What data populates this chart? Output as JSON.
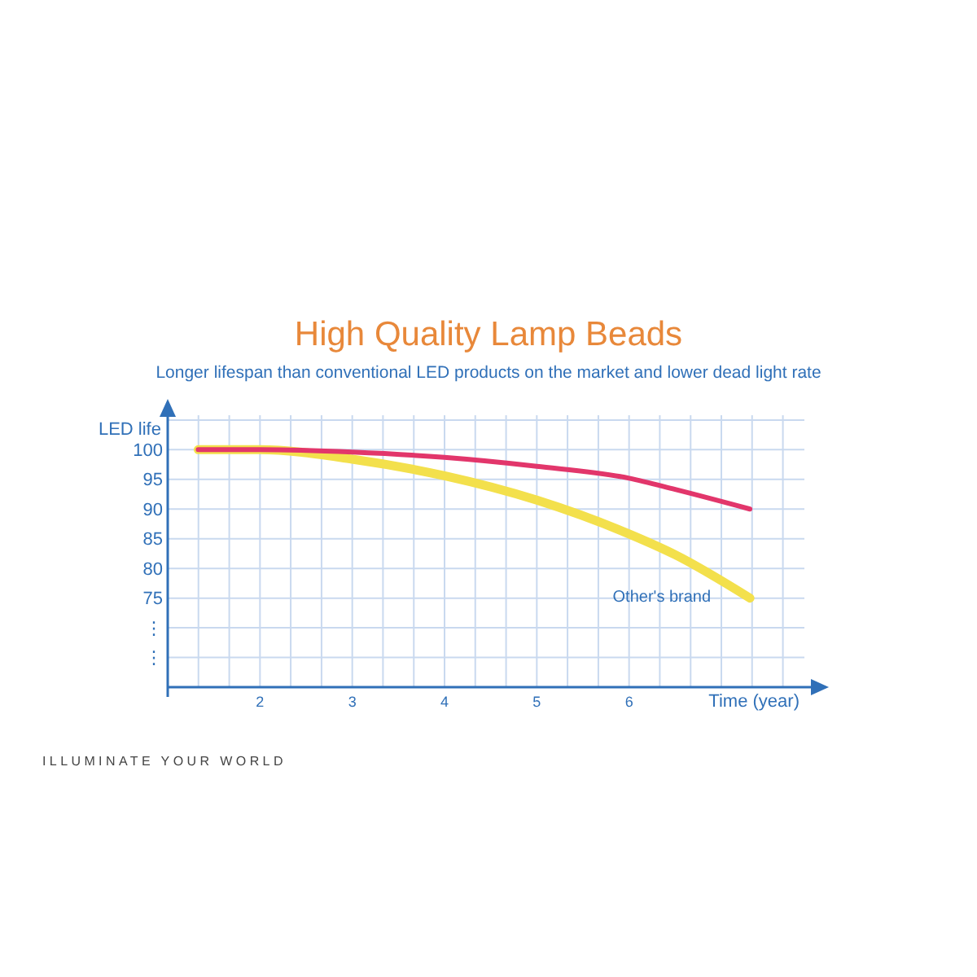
{
  "chart_data": {
    "type": "line",
    "title": "High Quality Lamp Beads",
    "subtitle": "Longer lifespan than conventional LED products on the market and lower dead light rate",
    "xlabel": "Time (year)",
    "ylabel": "LED life",
    "annotations": [
      "ILLUMINATE YOUR WORLD"
    ],
    "xlim": [
      1,
      7.9
    ],
    "ylim": [
      60,
      108
    ],
    "xticks": [
      {
        "value": 1.333,
        "label": null
      },
      {
        "value": 1.667,
        "label": null
      },
      2,
      {
        "value": 2.333,
        "label": null
      },
      {
        "value": 2.667,
        "label": null
      },
      3,
      {
        "value": 3.333,
        "label": null
      },
      {
        "value": 3.667,
        "label": null
      },
      4,
      {
        "value": 4.333,
        "label": null
      },
      {
        "value": 4.667,
        "label": null
      },
      5,
      {
        "value": 5.333,
        "label": null
      },
      {
        "value": 5.667,
        "label": null
      },
      6,
      {
        "value": 6.333,
        "label": null
      },
      {
        "value": 6.667,
        "label": null
      },
      {
        "value": 7,
        "label": null
      },
      {
        "value": 7.333,
        "label": null
      },
      {
        "value": 7.667,
        "label": null
      }
    ],
    "yticks": [
      {
        "value": 65,
        "label": "⋮"
      },
      {
        "value": 70,
        "label": "⋮"
      },
      75,
      80,
      85,
      90,
      95,
      100,
      {
        "value": 105,
        "label": null
      }
    ],
    "grid": true,
    "marker": "none",
    "line_style": "solid",
    "series": [
      {
        "color": "#e2366b",
        "x": [
          1.33,
          2,
          3,
          4,
          5,
          6,
          6.5,
          7.31
        ],
        "values": [
          100,
          100,
          99.6,
          98.7,
          97.2,
          95.2,
          93.3,
          90
        ]
      },
      {
        "name": "Other's brand",
        "color": "#f3e04c",
        "x": [
          1.33,
          2,
          3,
          4,
          5,
          6,
          6.5,
          7.31
        ],
        "values": [
          100,
          100,
          98.4,
          95.6,
          91.5,
          85.8,
          82.3,
          75
        ]
      }
    ]
  }
}
